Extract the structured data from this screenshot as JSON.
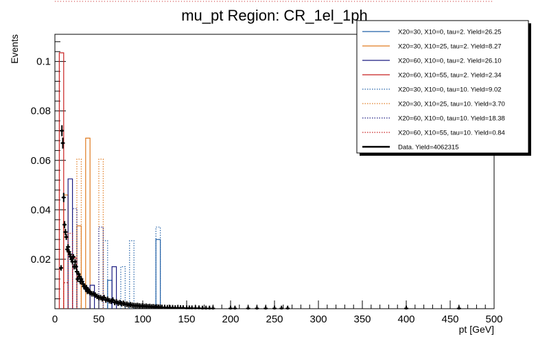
{
  "chart_data": {
    "type": "histogram",
    "title": "mu_pt Region: CR_1el_1ph",
    "xlabel": "pt [GeV]",
    "ylabel": "Events",
    "xlim": [
      0,
      500
    ],
    "ylim": [
      0,
      0.111
    ],
    "bin_width": 5,
    "x_ticks": [
      0,
      50,
      100,
      150,
      200,
      250,
      300,
      350,
      400,
      450,
      500
    ],
    "y_ticks": [
      0.02,
      0.04,
      0.06,
      0.08,
      0.1
    ],
    "y_tick_labels": [
      "0.02",
      "0.04",
      "0.06",
      "0.08",
      "0.1"
    ],
    "grid": false,
    "legend_position": "top-right",
    "series": [
      {
        "name": "X20=30, X10=0, tau=2. Yield=26.25",
        "color": "#1f5fa6",
        "style": "solid",
        "bins": [
          [
            60,
            0.0115
          ],
          [
            115,
            0.028
          ]
        ]
      },
      {
        "name": "X20=30, X10=25, tau=2. Yield=8.27",
        "color": "#e07a1f",
        "style": "solid",
        "bins": [
          [
            10,
            0.046
          ],
          [
            25,
            0.0335
          ],
          [
            35,
            0.069
          ]
        ]
      },
      {
        "name": "X20=60, X10=0, tau=2. Yield=26.10",
        "color": "#1a1a80",
        "style": "solid",
        "bins": [
          [
            15,
            0.0525
          ],
          [
            40,
            0.0095
          ],
          [
            65,
            0.017
          ]
        ]
      },
      {
        "name": "X20=60, X10=55, tau=2. Yield=2.34",
        "color": "#c81e1e",
        "style": "solid",
        "bins": [
          [
            5,
            0.1035
          ],
          [
            20,
            0.0205
          ]
        ]
      },
      {
        "name": "X20=30, X10=0, tau=10. Yield=9.02",
        "color": "#1f5fa6",
        "style": "dotted",
        "bins": [
          [
            55,
            0.0275
          ],
          [
            75,
            0.017
          ],
          [
            85,
            0.0275
          ],
          [
            115,
            0.033
          ]
        ]
      },
      {
        "name": "X20=30, X10=25, tau=10. Yield=3.70",
        "color": "#e07a1f",
        "style": "dotted",
        "bins": [
          [
            25,
            0.0605
          ],
          [
            50,
            0.0605
          ]
        ]
      },
      {
        "name": "X20=60, X10=0, tau=10. Yield=18.38",
        "color": "#1a1a80",
        "style": "dotted",
        "bins": [
          [
            20,
            0.0405
          ],
          [
            50,
            0.033
          ]
        ]
      },
      {
        "name": "X20=60, X10=55, tau=10. Yield=0.84",
        "color": "#c81e1e",
        "style": "dotted",
        "bins": [
          [
            10,
            0.0105
          ],
          [
            15,
            0.0305
          ]
        ]
      },
      {
        "name": "Data. Yield=4062315",
        "color": "#000000",
        "style": "data",
        "points": [
          [
            7,
            0.0165
          ],
          [
            8,
            0.072
          ],
          [
            9,
            0.067
          ],
          [
            10,
            0.045
          ],
          [
            11,
            0.034
          ],
          [
            12,
            0.031
          ],
          [
            13,
            0.029
          ],
          [
            14,
            0.024
          ],
          [
            15,
            0.025
          ],
          [
            16,
            0.023
          ],
          [
            17,
            0.022
          ],
          [
            18,
            0.021
          ],
          [
            19,
            0.02
          ],
          [
            20,
            0.019
          ],
          [
            21,
            0.021
          ],
          [
            22,
            0.017
          ],
          [
            23,
            0.019
          ],
          [
            24,
            0.017
          ],
          [
            25,
            0.015
          ],
          [
            26,
            0.012
          ],
          [
            27,
            0.014
          ],
          [
            28,
            0.013
          ],
          [
            29,
            0.011
          ],
          [
            30,
            0.012
          ],
          [
            31,
            0.011
          ],
          [
            32,
            0.01
          ],
          [
            33,
            0.009
          ],
          [
            34,
            0.009
          ],
          [
            35,
            0.008
          ],
          [
            36,
            0.0085
          ],
          [
            37,
            0.007
          ],
          [
            38,
            0.0075
          ],
          [
            39,
            0.007
          ],
          [
            40,
            0.0065
          ],
          [
            42,
            0.006
          ],
          [
            44,
            0.006
          ],
          [
            46,
            0.0055
          ],
          [
            48,
            0.005
          ],
          [
            50,
            0.0045
          ],
          [
            52,
            0.0045
          ],
          [
            54,
            0.004
          ],
          [
            56,
            0.0045
          ],
          [
            58,
            0.0035
          ],
          [
            60,
            0.0038
          ],
          [
            62,
            0.0032
          ],
          [
            64,
            0.003
          ],
          [
            66,
            0.0035
          ],
          [
            68,
            0.0025
          ],
          [
            70,
            0.0028
          ],
          [
            72,
            0.0022
          ],
          [
            74,
            0.0025
          ],
          [
            76,
            0.002
          ],
          [
            78,
            0.0022
          ],
          [
            80,
            0.0018
          ],
          [
            82,
            0.0018
          ],
          [
            84,
            0.0015
          ],
          [
            86,
            0.0016
          ],
          [
            88,
            0.0014
          ],
          [
            90,
            0.0013
          ],
          [
            92,
            0.0012
          ],
          [
            94,
            0.0013
          ],
          [
            96,
            0.0011
          ],
          [
            98,
            0.001
          ],
          [
            100,
            0.0011
          ],
          [
            102,
            0.0009
          ],
          [
            104,
            0.001
          ],
          [
            106,
            0.0008
          ],
          [
            108,
            0.0009
          ],
          [
            110,
            0.0007
          ],
          [
            112,
            0.0008
          ],
          [
            114,
            0.0006
          ],
          [
            116,
            0.0007
          ],
          [
            118,
            0.0006
          ],
          [
            120,
            0.0006
          ],
          [
            122,
            0.0005
          ],
          [
            125,
            0.0005
          ],
          [
            128,
            0.0004
          ],
          [
            131,
            0.0004
          ],
          [
            134,
            0.0004
          ],
          [
            137,
            0.0003
          ],
          [
            140,
            0.0003
          ],
          [
            143,
            0.0003
          ],
          [
            146,
            0.0003
          ],
          [
            150,
            0.0002
          ],
          [
            153,
            0.0002
          ],
          [
            156,
            0.0002
          ],
          [
            160,
            0.0002
          ],
          [
            164,
            0.0002
          ],
          [
            168,
            0.0001
          ],
          [
            172,
            0.0001
          ],
          [
            176,
            0.0001
          ],
          [
            180,
            0.0001
          ],
          [
            200,
            0.0001
          ],
          [
            205,
            0.0001
          ],
          [
            220,
            0.0001
          ],
          [
            230,
            0.0001
          ],
          [
            240,
            0.0001
          ],
          [
            250,
            0.0001
          ],
          [
            258,
            0.0001
          ],
          [
            265,
            0.0001
          ],
          [
            400,
            0.0001
          ],
          [
            460,
            0.0001
          ]
        ]
      }
    ]
  }
}
